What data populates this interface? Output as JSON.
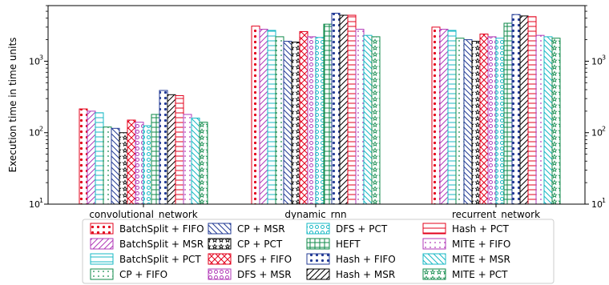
{
  "chart_data": {
    "type": "bar",
    "title": "",
    "xlabel": "",
    "ylabel": "Execution time in time units",
    "yscale": "log",
    "ylim": [
      10,
      6000
    ],
    "y_ticks": [
      10,
      100,
      1000
    ],
    "y_tick_labels": [
      [
        "10",
        "1"
      ],
      [
        "10",
        "2"
      ],
      [
        "10",
        "3"
      ]
    ],
    "grid": false,
    "legend_position": "bottom",
    "categories": [
      "convolutional_network",
      "dynamic_rnn",
      "recurrent_network"
    ],
    "series": [
      {
        "name": "BatchSplit + FIFO",
        "color": "#e3001b",
        "hatch": "dots-large",
        "values": [
          215,
          3100,
          3000
        ]
      },
      {
        "name": "BatchSplit + MSR",
        "color": "#b23ab8",
        "hatch": "slash",
        "values": [
          200,
          2800,
          2800
        ]
      },
      {
        "name": "BatchSplit + PCT",
        "color": "#17b8c5",
        "hatch": "horizontal",
        "values": [
          190,
          2700,
          2700
        ]
      },
      {
        "name": "CP + FIFO",
        "color": "#0f8a4a",
        "hatch": "dots-small",
        "values": [
          120,
          2200,
          2100
        ]
      },
      {
        "name": "CP + MSR",
        "color": "#233b96",
        "hatch": "backslash",
        "values": [
          115,
          1900,
          2000
        ]
      },
      {
        "name": "CP + PCT",
        "color": "#000000",
        "hatch": "stars",
        "values": [
          100,
          1850,
          1900
        ]
      },
      {
        "name": "DFS + FIFO",
        "color": "#e3001b",
        "hatch": "cross",
        "values": [
          150,
          2600,
          2400
        ]
      },
      {
        "name": "DFS + MSR",
        "color": "#b23ab8",
        "hatch": "circles",
        "values": [
          140,
          2200,
          2200
        ]
      },
      {
        "name": "DFS + PCT",
        "color": "#17b8c5",
        "hatch": "circles",
        "values": [
          125,
          2150,
          2100
        ]
      },
      {
        "name": "HEFT",
        "color": "#0f8a4a",
        "hatch": "grid",
        "values": [
          180,
          3300,
          3400
        ]
      },
      {
        "name": "Hash + FIFO",
        "color": "#233b96",
        "hatch": "dots-large",
        "values": [
          390,
          4700,
          4500
        ]
      },
      {
        "name": "Hash + MSR",
        "color": "#000000",
        "hatch": "slash",
        "values": [
          340,
          4400,
          4300
        ]
      },
      {
        "name": "Hash + PCT",
        "color": "#e3001b",
        "hatch": "horizontal",
        "values": [
          330,
          4400,
          4200
        ]
      },
      {
        "name": "MITE + FIFO",
        "color": "#b23ab8",
        "hatch": "dots-small",
        "values": [
          180,
          2800,
          2300
        ]
      },
      {
        "name": "MITE + MSR",
        "color": "#17b8c5",
        "hatch": "backslash",
        "values": [
          160,
          2300,
          2200
        ]
      },
      {
        "name": "MITE + PCT",
        "color": "#0f8a4a",
        "hatch": "stars",
        "values": [
          140,
          2200,
          2100
        ]
      }
    ]
  }
}
